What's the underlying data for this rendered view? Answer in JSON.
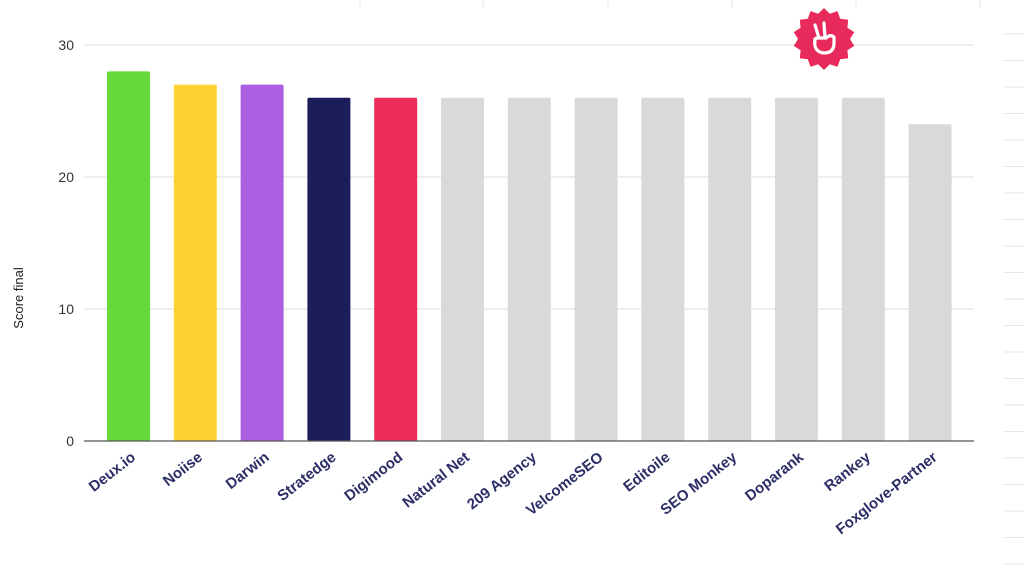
{
  "chart_data": {
    "type": "bar",
    "title": "",
    "xlabel": "",
    "ylabel": "Score final",
    "ylim": [
      0,
      30
    ],
    "yticks": [
      0,
      10,
      20,
      30
    ],
    "grid": true,
    "categories": [
      "Deux.io",
      "Noiise",
      "Darwin",
      "Stratedge",
      "Digimood",
      "Natural Net",
      "209 Agency",
      "VelcomeSEO",
      "Editoile",
      "SEO Monkey",
      "Doparank",
      "Rankey",
      "Foxglove-Partner"
    ],
    "values": [
      28,
      27,
      27,
      26,
      26,
      26,
      26,
      26,
      26,
      26,
      26,
      26,
      24
    ],
    "colors": [
      "#66d93a",
      "#fdd332",
      "#ac5fe0",
      "#1b1e5b",
      "#ec2c5a",
      "#d9d9d9",
      "#d9d9d9",
      "#d9d9d9",
      "#d9d9d9",
      "#d9d9d9",
      "#d9d9d9",
      "#d9d9d9",
      "#d9d9d9"
    ],
    "label_color": "#2b2f66"
  },
  "badge": {
    "icon": "peace-hand-badge-icon",
    "color": "#e8295b"
  }
}
